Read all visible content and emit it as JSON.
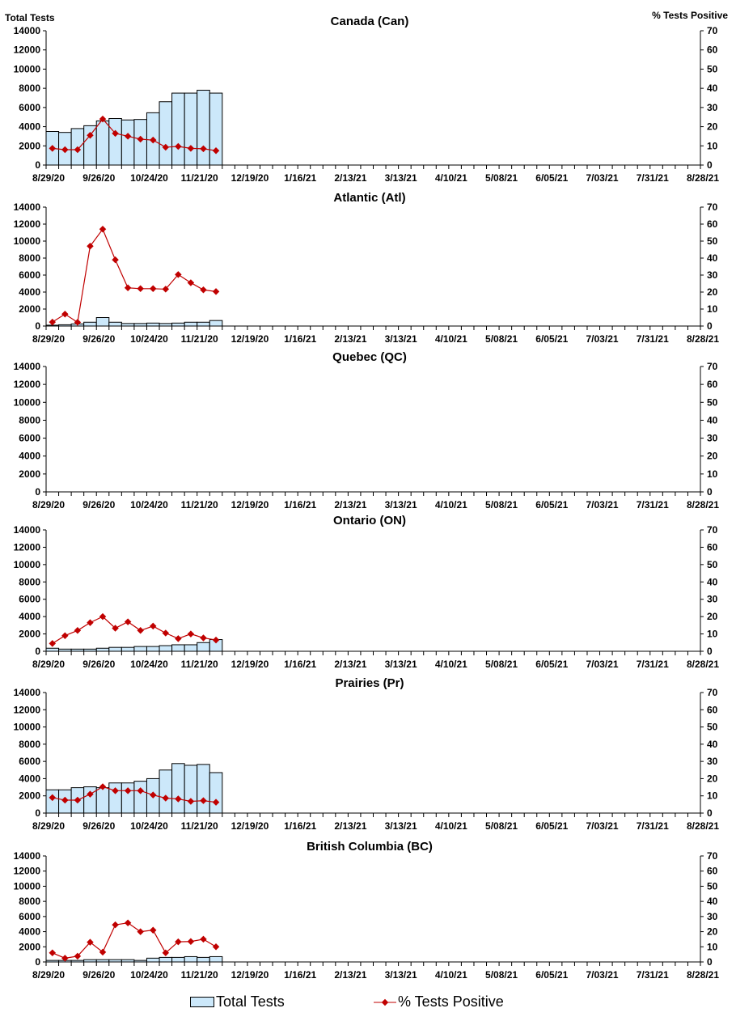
{
  "colors": {
    "bar_fill": "#cce8fa",
    "bar_stroke": "#000000",
    "line": "#c00000"
  },
  "y_left_label": "Total Tests",
  "y_right_label": "% Tests Positive",
  "legend": {
    "bars": "Total Tests",
    "line": "% Tests Positive",
    "placement": "bottom"
  },
  "chart_data": [
    {
      "type": "bar+line",
      "title": "Canada (Can)",
      "x_tick_labels": [
        "8/29/20",
        "9/26/20",
        "10/24/20",
        "11/21/20",
        "12/19/20",
        "1/16/21",
        "2/13/21",
        "3/13/21",
        "4/10/21",
        "5/08/21",
        "6/05/21",
        "7/03/21",
        "7/31/21",
        "8/28/21"
      ],
      "ylim_left": [
        0,
        14000
      ],
      "ylim_right": [
        0,
        70
      ],
      "y_left_ticks": [
        0,
        2000,
        4000,
        6000,
        8000,
        10000,
        12000,
        14000
      ],
      "y_right_ticks": [
        0,
        10,
        20,
        30,
        40,
        50,
        60,
        70
      ],
      "total_tests": [
        3500,
        3400,
        3800,
        4100,
        4600,
        4850,
        4700,
        4750,
        5450,
        6600,
        7500,
        7500,
        7800,
        7500
      ],
      "pct_positive": [
        8.7,
        8,
        8,
        15.5,
        24,
        16.5,
        15,
        13.5,
        13,
        9.3,
        9.7,
        8.7,
        8.5,
        7.5
      ]
    },
    {
      "type": "bar+line",
      "title": "Atlantic (Atl)",
      "ylim_left": [
        0,
        14000
      ],
      "ylim_right": [
        0,
        70
      ],
      "total_tests": [
        100,
        150,
        250,
        450,
        1000,
        450,
        300,
        300,
        350,
        300,
        350,
        450,
        450,
        650
      ],
      "pct_positive": [
        2.3,
        7,
        2.2,
        47,
        57,
        39,
        22.5,
        22,
        22,
        21.7,
        30.3,
        25.5,
        21.3,
        20.3
      ]
    },
    {
      "type": "bar+line",
      "title": "Quebec (QC)",
      "ylim_left": [
        0,
        14000
      ],
      "ylim_right": [
        0,
        70
      ],
      "total_tests": [],
      "pct_positive": []
    },
    {
      "type": "bar+line",
      "title": "Ontario (ON)",
      "ylim_left": [
        0,
        14000
      ],
      "ylim_right": [
        0,
        70
      ],
      "total_tests": [
        350,
        250,
        250,
        250,
        350,
        450,
        450,
        550,
        550,
        650,
        750,
        750,
        1000,
        1350
      ],
      "pct_positive": [
        4.5,
        9,
        12,
        16.5,
        20,
        13.3,
        17,
        12,
        14.5,
        10.5,
        7.3,
        10,
        7.7,
        6.5
      ]
    },
    {
      "type": "bar+line",
      "title": "Prairies (Pr)",
      "ylim_left": [
        0,
        14000
      ],
      "ylim_right": [
        0,
        70
      ],
      "total_tests": [
        2700,
        2700,
        2950,
        3050,
        2950,
        3500,
        3500,
        3700,
        4000,
        5000,
        5750,
        5550,
        5650,
        4700
      ],
      "pct_positive": [
        9,
        7.5,
        7.5,
        11,
        15.3,
        13,
        13,
        13,
        10.5,
        8.7,
        8.2,
        6.8,
        7.2,
        6.3
      ]
    },
    {
      "type": "bar+line",
      "title": "British Columbia (BC)",
      "ylim_left": [
        0,
        14000
      ],
      "ylim_right": [
        0,
        70
      ],
      "total_tests": [
        200,
        200,
        200,
        300,
        300,
        300,
        300,
        200,
        500,
        600,
        600,
        700,
        600,
        700
      ],
      "pct_positive": [
        6,
        2.5,
        3.8,
        13,
        6.5,
        24.5,
        25.8,
        20,
        21,
        6,
        13.3,
        13.5,
        15,
        10
      ]
    }
  ]
}
